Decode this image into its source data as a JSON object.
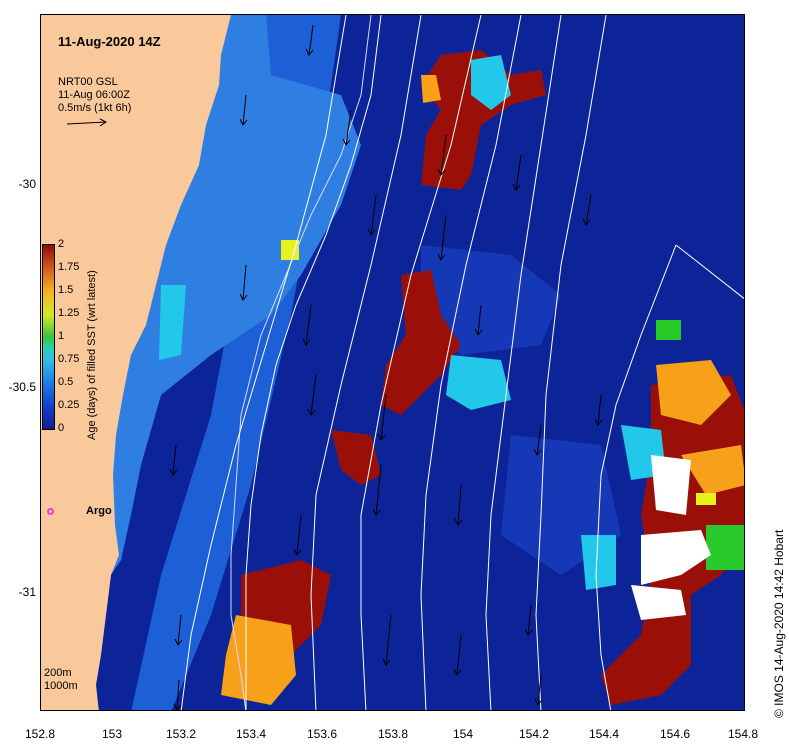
{
  "map": {
    "title": "11-Aug-2020 14Z",
    "product": {
      "line1": "NRT00 GSL",
      "line2": "11-Aug 06:00Z",
      "line3": "0.5m/s (1kt 6h)"
    },
    "x_ticks": [
      "152.8",
      "153",
      "153.2",
      "153.4",
      "153.6",
      "153.8",
      "154",
      "154.2",
      "154.4",
      "154.6",
      "154.8"
    ],
    "y_ticks": [
      "-30",
      "-30.5",
      "-31"
    ],
    "colorbar": {
      "title": "Age (days) of filled SST (wrt latest)",
      "ticks": [
        "2",
        "1.75",
        "1.5",
        "1.25",
        "1",
        "0.75",
        "0.5",
        "0.25",
        "0"
      ]
    },
    "argo_label": "Argo",
    "contour_legend": [
      "200m",
      "1000m"
    ],
    "credit": "© IMOS 14-Aug-2020 14:42 Hobart",
    "colors": {
      "land": "#f9c89b",
      "deep": "#0c2497",
      "mid": "#1c5fd6",
      "shelf": "#2f7fe3",
      "cyan": "#22c7ea",
      "orange": "#f7a11a",
      "darkred": "#9a1008",
      "green": "#2ac92a",
      "yellow": "#e6f21c",
      "white": "#ffffff"
    }
  }
}
